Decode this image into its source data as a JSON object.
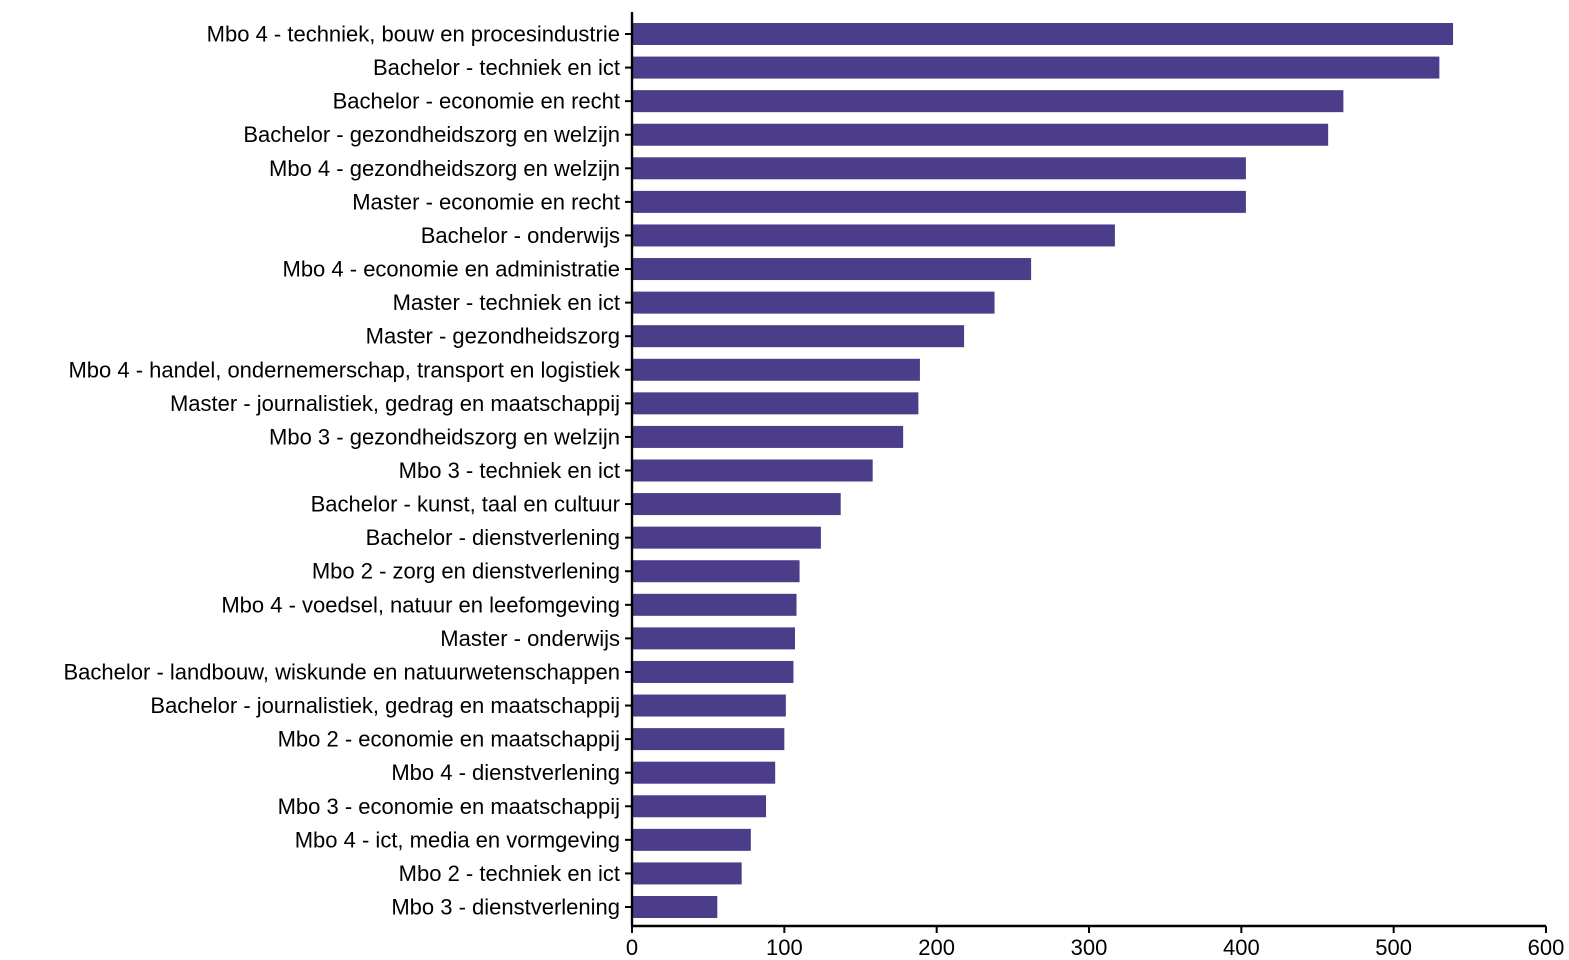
{
  "chart_data": {
    "type": "bar",
    "orientation": "horizontal",
    "title": "",
    "xlabel": "",
    "ylabel": "",
    "xlim": [
      0,
      600
    ],
    "x_ticks": [
      0,
      100,
      200,
      300,
      400,
      500,
      600
    ],
    "grid": false,
    "bar_color": "#4b3d8a",
    "categories": [
      "Mbo 4 - techniek, bouw en procesindustrie",
      "Bachelor - techniek en ict",
      "Bachelor - economie en recht",
      "Bachelor - gezondheidszorg en welzijn",
      "Mbo 4 - gezondheidszorg en welzijn",
      "Master - economie en recht",
      "Bachelor - onderwijs",
      "Mbo 4 - economie en administratie",
      "Master - techniek en ict",
      "Master - gezondheidszorg",
      "Mbo 4 - handel, ondernemerschap, transport en logistiek",
      "Master - journalistiek, gedrag en maatschappij",
      "Mbo 3 - gezondheidszorg en welzijn",
      "Mbo 3 - techniek en ict",
      "Bachelor - kunst, taal en cultuur",
      "Bachelor - dienstverlening",
      "Mbo 2 - zorg en dienstverlening",
      "Mbo 4 - voedsel, natuur en leefomgeving",
      "Master - onderwijs",
      "Bachelor - landbouw, wiskunde en natuurwetenschappen",
      "Bachelor - journalistiek, gedrag en maatschappij",
      "Mbo 2 - economie en maatschappij",
      "Mbo 4 - dienstverlening",
      "Mbo 3 - economie en maatschappij",
      "Mbo 4 - ict, media en vormgeving",
      "Mbo 2 - techniek en ict",
      "Mbo 3 - dienstverlening"
    ],
    "values": [
      539,
      530,
      467,
      457,
      403,
      403,
      317,
      262,
      238,
      218,
      189,
      188,
      178,
      158,
      137,
      124,
      110,
      108,
      107,
      106,
      101,
      100,
      94,
      88,
      78,
      72,
      56
    ]
  }
}
